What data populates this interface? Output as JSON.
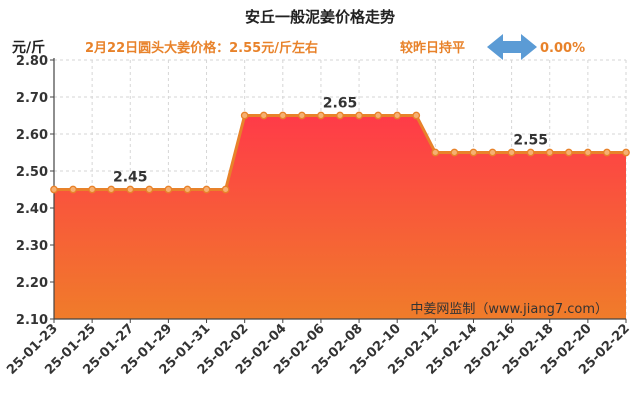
{
  "chart_data": {
    "type": "area",
    "title": "安丘一般泥姜价格走势",
    "ylabel": "元/斤",
    "headline": "2月22日圆头大姜价格：2.55元/斤左右",
    "compare_text": "较昨日持平",
    "change_pct": "0.00%",
    "watermark": "中姜网监制（www.jiang7.com）",
    "ylim": [
      2.1,
      2.8
    ],
    "yticks": [
      "2.10",
      "2.20",
      "2.30",
      "2.40",
      "2.50",
      "2.60",
      "2.70",
      "2.80"
    ],
    "xtick_labels": [
      "25-01-23",
      "25-01-25",
      "25-01-27",
      "25-01-29",
      "25-01-31",
      "25-02-02",
      "25-02-04",
      "25-02-06",
      "25-02-08",
      "25-02-10",
      "25-02-12",
      "25-02-14",
      "25-02-16",
      "25-02-18",
      "25-02-20",
      "25-02-22"
    ],
    "x": [
      "25-01-23",
      "25-01-24",
      "25-01-25",
      "25-01-26",
      "25-01-27",
      "25-01-28",
      "25-01-29",
      "25-01-30",
      "25-01-31",
      "25-02-01",
      "25-02-02",
      "25-02-03",
      "25-02-04",
      "25-02-05",
      "25-02-06",
      "25-02-07",
      "25-02-08",
      "25-02-09",
      "25-02-10",
      "25-02-11",
      "25-02-12",
      "25-02-13",
      "25-02-14",
      "25-02-15",
      "25-02-16",
      "25-02-17",
      "25-02-18",
      "25-02-19",
      "25-02-20",
      "25-02-21",
      "25-02-22"
    ],
    "values": [
      2.45,
      2.45,
      2.45,
      2.45,
      2.45,
      2.45,
      2.45,
      2.45,
      2.45,
      2.45,
      2.65,
      2.65,
      2.65,
      2.65,
      2.65,
      2.65,
      2.65,
      2.65,
      2.65,
      2.65,
      2.55,
      2.55,
      2.55,
      2.55,
      2.55,
      2.55,
      2.55,
      2.55,
      2.55,
      2.55,
      2.55
    ],
    "data_labels": [
      {
        "text": "2.45",
        "x": "25-01-27"
      },
      {
        "text": "2.65",
        "x": "25-02-07"
      },
      {
        "text": "2.55",
        "x": "25-02-17"
      }
    ],
    "colors": {
      "line": "#e8822a",
      "fill_top": "#ff3b48",
      "fill_bottom": "#f07c2a",
      "arrow": "#5b9bd5",
      "headline": "#e8822a"
    },
    "grid": true
  }
}
